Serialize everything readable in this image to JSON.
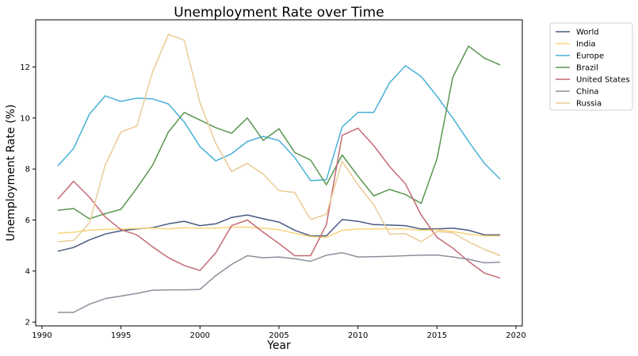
{
  "chart_data": {
    "type": "line",
    "title": "Unemployment Rate over Time",
    "xlabel": "Year",
    "ylabel": "Unemployment Rate (%)",
    "xlim": [
      1989.6,
      2020.4
    ],
    "ylim": [
      1.85,
      13.85
    ],
    "xticks": [
      1990,
      1995,
      2000,
      2005,
      2010,
      2015,
      2020
    ],
    "yticks": [
      2,
      4,
      6,
      8,
      10,
      12
    ],
    "grid": false,
    "legend_position": "outside-top-right",
    "x": [
      1991,
      1992,
      1993,
      1994,
      1995,
      1996,
      1997,
      1998,
      1999,
      2000,
      2001,
      2002,
      2003,
      2004,
      2005,
      2006,
      2007,
      2008,
      2009,
      2010,
      2011,
      2012,
      2013,
      2014,
      2015,
      2016,
      2017,
      2018,
      2019
    ],
    "series": [
      {
        "name": "World",
        "color": "#4a5a80",
        "values": [
          4.78,
          4.92,
          5.22,
          5.45,
          5.58,
          5.65,
          5.7,
          5.85,
          5.95,
          5.78,
          5.85,
          6.1,
          6.2,
          6.05,
          5.92,
          5.6,
          5.38,
          5.38,
          6.02,
          5.95,
          5.82,
          5.8,
          5.78,
          5.65,
          5.65,
          5.68,
          5.6,
          5.42,
          5.42
        ]
      },
      {
        "name": "India",
        "color": "#f8d57a",
        "values": [
          5.48,
          5.52,
          5.6,
          5.63,
          5.65,
          5.67,
          5.68,
          5.65,
          5.7,
          5.68,
          5.68,
          5.72,
          5.72,
          5.68,
          5.62,
          5.48,
          5.35,
          5.32,
          5.6,
          5.65,
          5.65,
          5.65,
          5.65,
          5.6,
          5.62,
          5.55,
          5.45,
          5.38,
          5.38
        ]
      },
      {
        "name": "Europe",
        "color": "#4ab0d6",
        "values": [
          8.12,
          8.8,
          10.15,
          10.87,
          10.65,
          10.78,
          10.75,
          10.55,
          9.85,
          8.88,
          8.32,
          8.6,
          9.08,
          9.28,
          9.12,
          8.45,
          7.55,
          7.58,
          9.65,
          10.22,
          10.22,
          11.38,
          12.05,
          11.63,
          10.85,
          10.0,
          9.08,
          8.22,
          7.6
        ]
      },
      {
        "name": "Brazil",
        "color": "#5a9650",
        "values": [
          6.38,
          6.45,
          6.05,
          6.25,
          6.42,
          7.25,
          8.15,
          9.45,
          10.22,
          9.92,
          9.62,
          9.4,
          10.0,
          9.12,
          9.58,
          8.65,
          8.35,
          7.38,
          8.55,
          7.72,
          6.95,
          7.2,
          7.0,
          6.65,
          8.4,
          11.6,
          12.82,
          12.35,
          12.08
        ]
      },
      {
        "name": "United States",
        "color": "#c46a74",
        "values": [
          6.82,
          7.52,
          6.9,
          6.12,
          5.62,
          5.42,
          4.95,
          4.52,
          4.22,
          4.02,
          4.72,
          5.78,
          6.0,
          5.52,
          5.08,
          4.6,
          4.6,
          5.82,
          9.32,
          9.6,
          8.92,
          8.1,
          7.42,
          6.2,
          5.32,
          4.9,
          4.38,
          3.92,
          3.72
        ]
      },
      {
        "name": "China",
        "color": "#8a919c",
        "values": [
          2.38,
          2.38,
          2.7,
          2.92,
          3.02,
          3.12,
          3.25,
          3.26,
          3.26,
          3.28,
          3.82,
          4.26,
          4.6,
          4.52,
          4.55,
          4.48,
          4.38,
          4.62,
          4.72,
          4.55,
          4.56,
          4.58,
          4.6,
          4.62,
          4.63,
          4.55,
          4.46,
          4.32,
          4.35
        ]
      },
      {
        "name": "Russia",
        "color": "#eacb95",
        "values": [
          5.15,
          5.2,
          5.88,
          8.15,
          9.45,
          9.68,
          11.8,
          13.28,
          13.05,
          10.6,
          9.0,
          7.9,
          8.22,
          7.8,
          7.15,
          7.08,
          6.02,
          6.22,
          8.3,
          7.38,
          6.6,
          5.45,
          5.47,
          5.15,
          5.55,
          5.5,
          5.15,
          4.85,
          4.6
        ]
      }
    ]
  }
}
